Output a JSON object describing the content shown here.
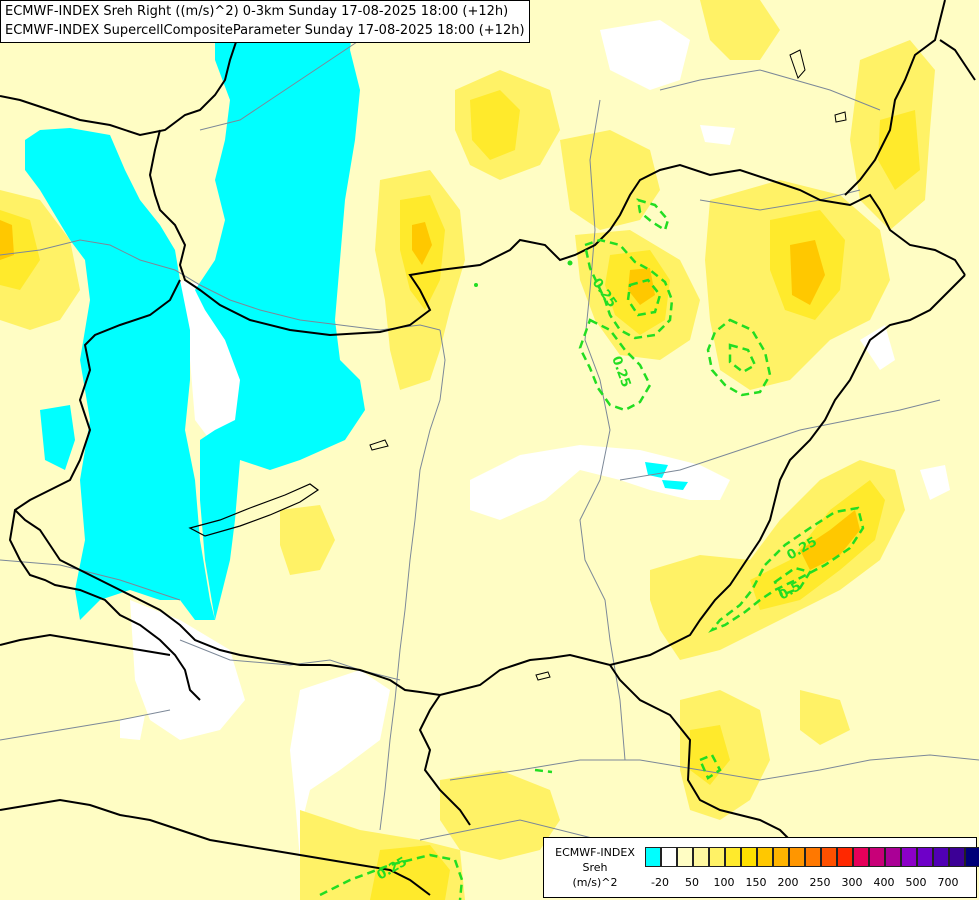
{
  "titles": {
    "line1": "ECMWF-INDEX Sreh Right ((m/s)^2) 0-3km Sunday 17-08-2025 18:00 (+12h)",
    "line2": "ECMWF-INDEX SupercellCompositeParameter Sunday 17-08-2025 18:00 (+12h)"
  },
  "contour_labels": [
    "0.25",
    "0.25",
    "0.25",
    "0.5",
    "0.25"
  ],
  "legend": {
    "title_line1": "ECMWF-INDEX",
    "title_line2": "Sreh",
    "unit": "(m/s)^2",
    "colors": [
      "#00ffff",
      "#ffffff",
      "#fffdc4",
      "#fff8a0",
      "#fff266",
      "#ffea2c",
      "#ffe000",
      "#ffc800",
      "#ffb400",
      "#ff9600",
      "#ff7800",
      "#ff5000",
      "#ff2800",
      "#e6005a",
      "#c80078",
      "#aa0096",
      "#8c00c8",
      "#6e00c8",
      "#5000b4",
      "#3c0096",
      "#000078"
    ],
    "ticks": [
      "-20",
      "50",
      "100",
      "150",
      "200",
      "250",
      "300",
      "400",
      "500",
      "700"
    ]
  }
}
